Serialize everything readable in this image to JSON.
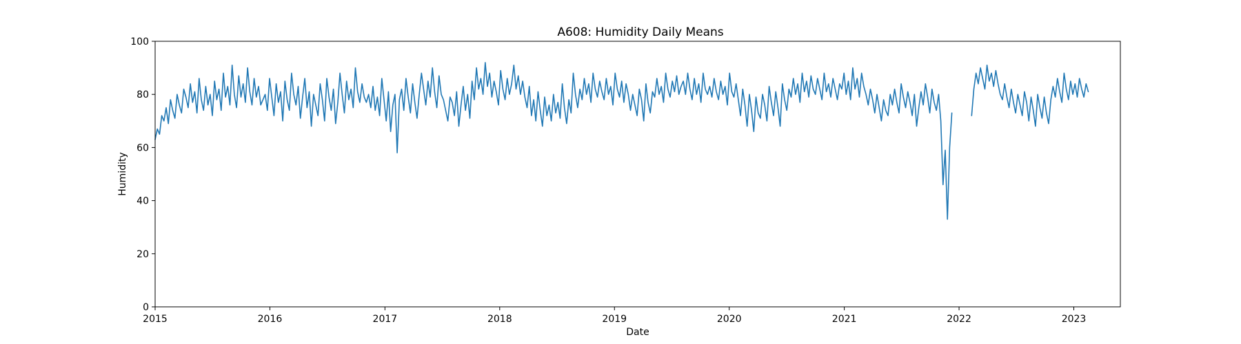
{
  "chart_data": {
    "type": "line",
    "title": "A608: Humidity Daily Means",
    "xlabel": "Date",
    "ylabel": "Humidity",
    "xlim": [
      "2015-01-01",
      "2023-05-29"
    ],
    "ylim": [
      0,
      100
    ],
    "x_ticks": [
      "2015",
      "2016",
      "2017",
      "2018",
      "2019",
      "2020",
      "2021",
      "2022",
      "2023"
    ],
    "y_ticks": [
      0,
      20,
      40,
      60,
      80,
      100
    ],
    "grid": false,
    "line_color": "#1f77b4",
    "series": [
      {
        "x_start": "2015-01-01",
        "x_step": "7 days",
        "values": [
          63,
          67,
          65,
          72,
          70,
          75,
          69,
          78,
          74,
          71,
          80,
          76,
          73,
          82,
          79,
          75,
          84,
          77,
          81,
          73,
          86,
          78,
          74,
          83,
          76,
          80,
          72,
          85,
          78,
          82,
          74,
          88,
          79,
          83,
          76,
          91,
          80,
          75,
          87,
          79,
          84,
          77,
          90,
          81,
          76,
          86,
          79,
          83,
          76,
          78,
          80,
          74,
          86,
          79,
          72,
          84,
          77,
          81,
          70,
          85,
          78,
          74,
          88,
          80,
          76,
          83,
          71,
          79,
          86,
          75,
          81,
          68,
          80,
          76,
          72,
          84,
          78,
          70,
          86,
          79,
          74,
          82,
          69,
          77,
          88,
          80,
          73,
          85,
          78,
          82,
          75,
          90,
          81,
          77,
          84,
          79,
          77,
          80,
          75,
          83,
          74,
          79,
          72,
          86,
          78,
          70,
          81,
          66,
          76,
          80,
          58,
          78,
          82,
          74,
          86,
          79,
          73,
          84,
          77,
          71,
          80,
          88,
          82,
          76,
          85,
          79,
          90,
          81,
          75,
          87,
          80,
          78,
          74,
          70,
          79,
          77,
          72,
          81,
          68,
          76,
          83,
          74,
          80,
          71,
          85,
          78,
          90,
          82,
          86,
          80,
          92,
          83,
          88,
          79,
          85,
          81,
          76,
          89,
          82,
          78,
          86,
          80,
          84,
          91,
          82,
          87,
          80,
          85,
          79,
          75,
          83,
          72,
          78,
          70,
          81,
          74,
          68,
          79,
          72,
          76,
          70,
          80,
          73,
          77,
          71,
          84,
          75,
          69,
          78,
          73,
          88,
          80,
          75,
          82,
          78,
          86,
          80,
          84,
          77,
          88,
          82,
          79,
          85,
          81,
          78,
          86,
          80,
          83,
          76,
          88,
          82,
          79,
          85,
          77,
          84,
          80,
          74,
          80,
          76,
          72,
          82,
          78,
          70,
          84,
          77,
          73,
          81,
          79,
          86,
          80,
          83,
          77,
          88,
          82,
          79,
          85,
          81,
          87,
          80,
          83,
          85,
          80,
          88,
          82,
          78,
          86,
          80,
          84,
          77,
          88,
          82,
          80,
          83,
          79,
          86,
          81,
          78,
          85,
          80,
          83,
          76,
          88,
          81,
          79,
          84,
          78,
          72,
          82,
          76,
          68,
          80,
          74,
          66,
          79,
          73,
          71,
          80,
          76,
          70,
          83,
          77,
          72,
          81,
          75,
          68,
          84,
          78,
          74,
          82,
          79,
          86,
          80,
          84,
          77,
          88,
          81,
          85,
          79,
          87,
          82,
          80,
          86,
          82,
          78,
          88,
          81,
          84,
          79,
          86,
          82,
          78,
          84,
          82,
          88,
          80,
          85,
          78,
          90,
          82,
          86,
          79,
          88,
          83,
          80,
          76,
          82,
          78,
          73,
          80,
          75,
          70,
          78,
          74,
          72,
          80,
          76,
          82,
          77,
          73,
          84,
          79,
          75,
          81,
          77,
          72,
          80,
          68,
          75,
          81,
          76,
          84,
          79,
          73,
          82,
          77,
          74,
          80,
          70,
          46,
          59,
          33,
          60,
          73,
          null,
          null,
          null,
          null,
          null,
          null,
          null,
          null,
          72,
          82,
          88,
          84,
          90,
          86,
          82,
          91,
          85,
          88,
          83,
          89,
          84,
          80,
          78,
          84,
          79,
          75,
          82,
          77,
          73,
          80,
          76,
          72,
          81,
          77,
          70,
          79,
          74,
          68,
          80,
          75,
          71,
          79,
          73,
          69,
          78,
          83,
          79,
          86,
          81,
          77,
          88,
          82,
          78,
          85,
          80,
          84,
          79,
          86,
          82,
          79,
          84,
          81
        ]
      }
    ]
  }
}
